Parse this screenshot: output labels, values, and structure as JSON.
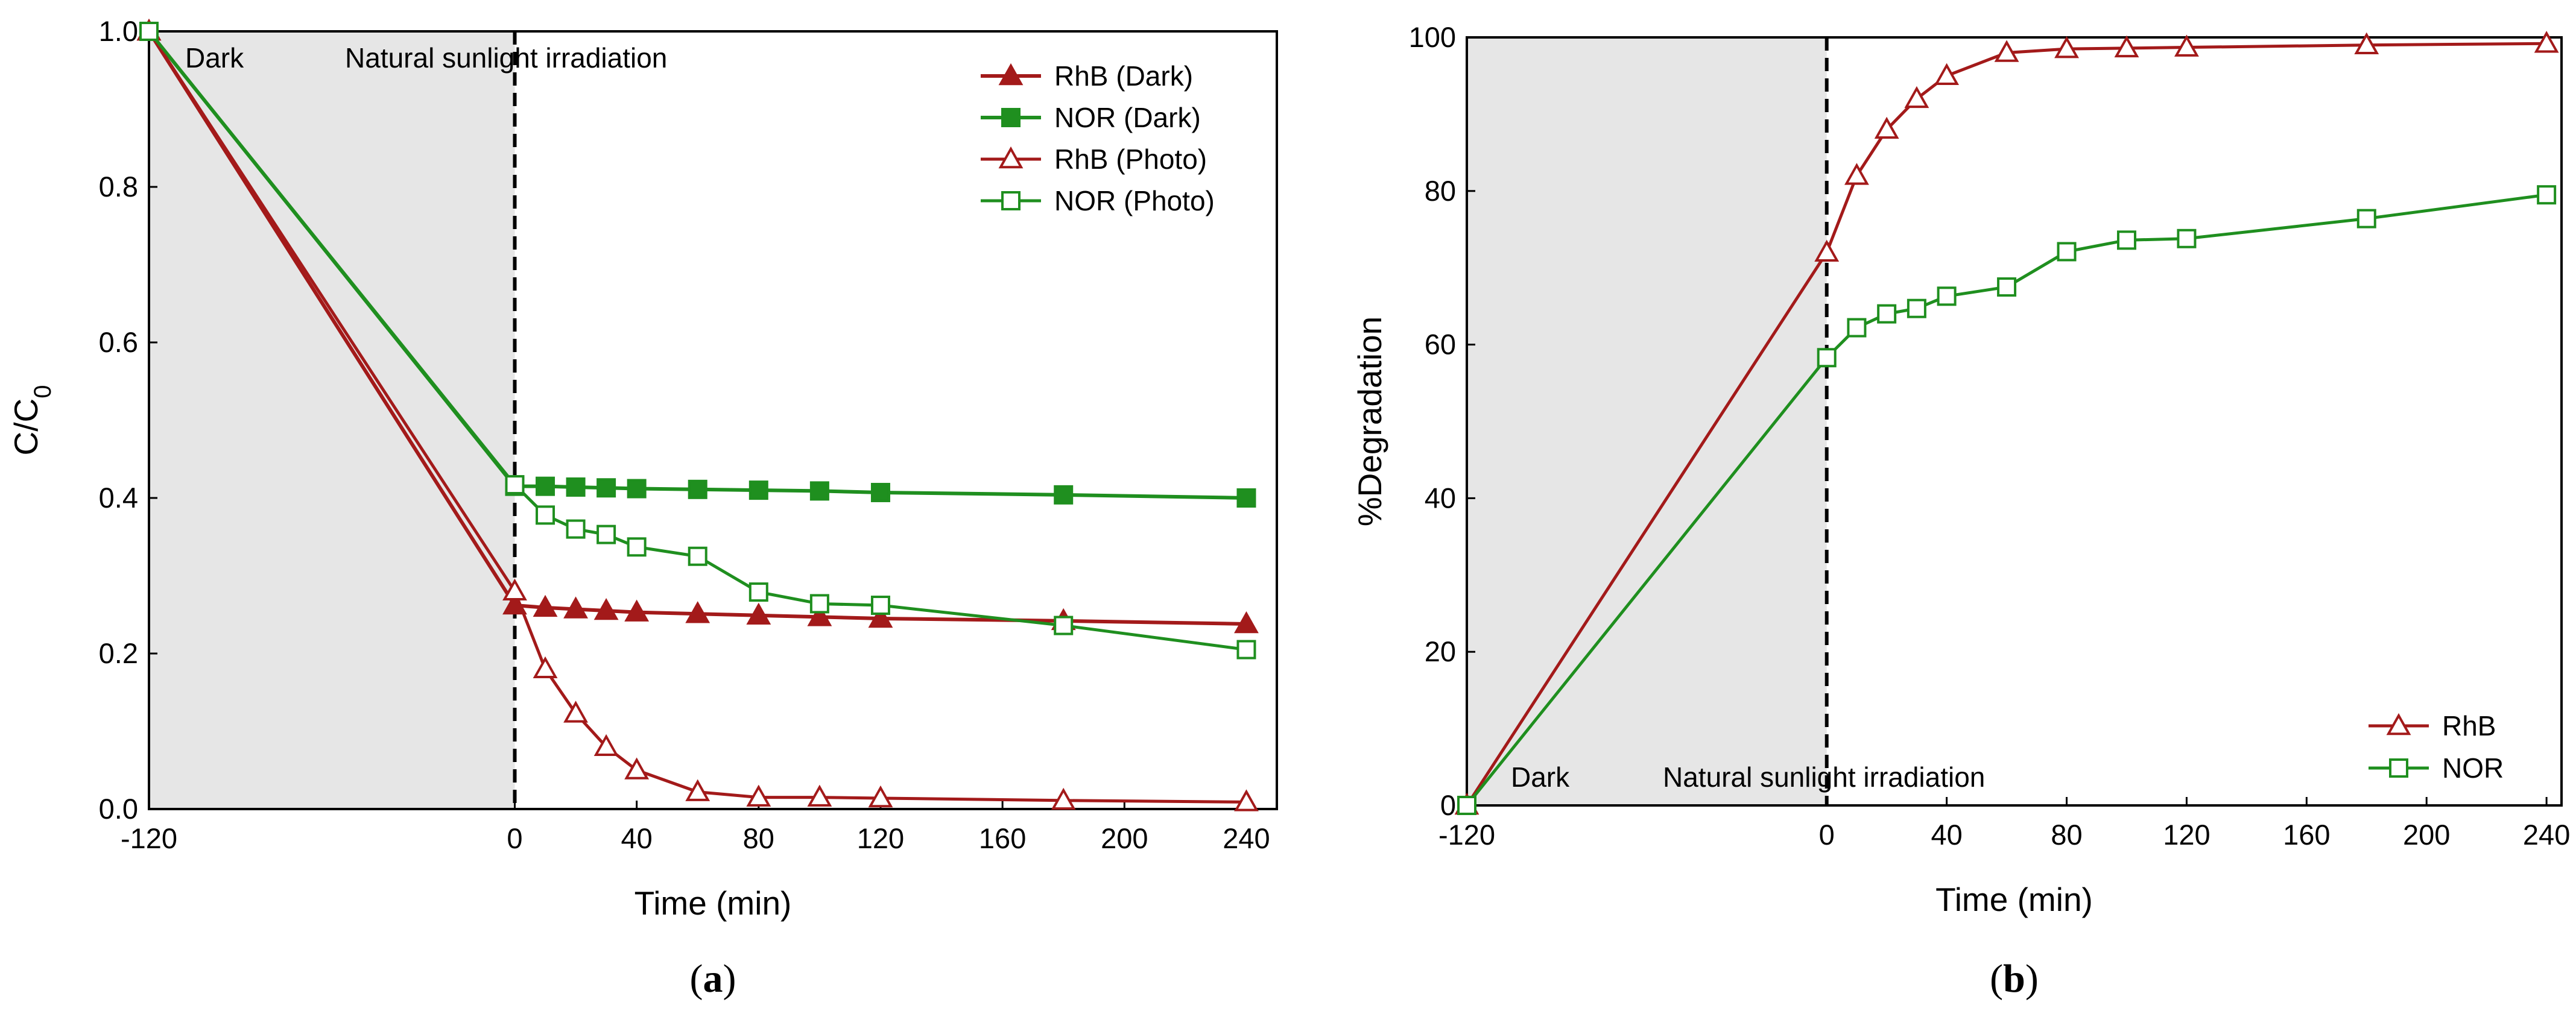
{
  "colors": {
    "rhb": "#a31a1a",
    "nor": "#1f8f1f",
    "dark_region": "#e6e6e6",
    "axis": "#000000"
  },
  "chart_data": [
    {
      "id": "a",
      "type": "line",
      "panel_label": "a",
      "xlabel": "Time (min)",
      "ylabel": "C/C",
      "ylabel_subscript": "0",
      "xlim": [
        -120,
        250
      ],
      "ylim": [
        0,
        1.0
      ],
      "x_ticks": [
        -120,
        0,
        40,
        80,
        120,
        160,
        200,
        240
      ],
      "x_tick_labels": [
        "-120",
        "0",
        "40",
        "80",
        "120",
        "160",
        "200",
        "240"
      ],
      "y_ticks": [
        0,
        0.2,
        0.4,
        0.6,
        0.8,
        1.0
      ],
      "y_tick_labels": [
        "0.0",
        "0.2",
        "0.4",
        "0.6",
        "0.8",
        "1.0"
      ],
      "grid": false,
      "dark_region": [
        -120,
        0
      ],
      "divider_x": 0,
      "region_labels": {
        "dark": "Dark",
        "light": "Natural sunlight irradiation"
      },
      "legend_position": "top-right",
      "series": [
        {
          "name": "RhB (Dark)",
          "color_key": "rhb",
          "marker": "triangle",
          "filled": true,
          "x": [
            -120,
            0,
            10,
            20,
            30,
            40,
            60,
            80,
            100,
            120,
            180,
            240
          ],
          "y": [
            1.0,
            0.262,
            0.259,
            0.257,
            0.255,
            0.253,
            0.251,
            0.249,
            0.247,
            0.245,
            0.242,
            0.238
          ]
        },
        {
          "name": "NOR (Dark)",
          "color_key": "nor",
          "marker": "square",
          "filled": true,
          "x": [
            -120,
            0,
            10,
            20,
            30,
            40,
            60,
            80,
            100,
            120,
            180,
            240
          ],
          "y": [
            1.0,
            0.415,
            0.415,
            0.414,
            0.413,
            0.412,
            0.411,
            0.41,
            0.409,
            0.407,
            0.404,
            0.4
          ]
        },
        {
          "name": "RhB (Photo)",
          "color_key": "rhb",
          "marker": "triangle",
          "filled": false,
          "x": [
            -120,
            0,
            10,
            20,
            30,
            40,
            60,
            80,
            100,
            120,
            180,
            240
          ],
          "y": [
            1.0,
            0.28,
            0.18,
            0.123,
            0.08,
            0.05,
            0.022,
            0.015,
            0.015,
            0.014,
            0.011,
            0.009
          ]
        },
        {
          "name": "NOR (Photo)",
          "color_key": "nor",
          "marker": "square",
          "filled": false,
          "x": [
            -120,
            0,
            10,
            20,
            30,
            40,
            60,
            80,
            100,
            120,
            180,
            240
          ],
          "y": [
            1.0,
            0.417,
            0.378,
            0.36,
            0.353,
            0.337,
            0.325,
            0.279,
            0.264,
            0.262,
            0.236,
            0.205
          ]
        }
      ]
    },
    {
      "id": "b",
      "type": "line",
      "panel_label": "b",
      "xlabel": "Time (min)",
      "ylabel": "%Degradation",
      "xlim": [
        -120,
        245
      ],
      "ylim": [
        0,
        100
      ],
      "x_ticks": [
        -120,
        0,
        40,
        80,
        120,
        160,
        200,
        240
      ],
      "x_tick_labels": [
        "-120",
        "0",
        "40",
        "80",
        "120",
        "160",
        "200",
        "240"
      ],
      "y_ticks": [
        0,
        20,
        40,
        60,
        80,
        100
      ],
      "y_tick_labels": [
        "0",
        "20",
        "40",
        "60",
        "80",
        "100"
      ],
      "grid": false,
      "dark_region": [
        -120,
        0
      ],
      "divider_x": 0,
      "region_labels": {
        "dark": "Dark",
        "light": "Natural sunlight irradiation"
      },
      "legend_position": "bottom-right",
      "series": [
        {
          "name": "RhB",
          "color_key": "rhb",
          "marker": "triangle",
          "filled": false,
          "x": [
            -120,
            0,
            10,
            20,
            30,
            40,
            60,
            80,
            100,
            120,
            180,
            240
          ],
          "y": [
            0,
            72,
            82,
            88,
            92,
            95,
            98,
            98.5,
            98.6,
            98.7,
            99,
            99.2
          ]
        },
        {
          "name": "NOR",
          "color_key": "nor",
          "marker": "square",
          "filled": false,
          "x": [
            -120,
            0,
            10,
            20,
            30,
            40,
            60,
            80,
            100,
            120,
            180,
            240
          ],
          "y": [
            0,
            58.3,
            62.2,
            64,
            64.7,
            66.3,
            67.5,
            72.1,
            73.6,
            73.8,
            76.4,
            79.5
          ]
        }
      ]
    }
  ]
}
